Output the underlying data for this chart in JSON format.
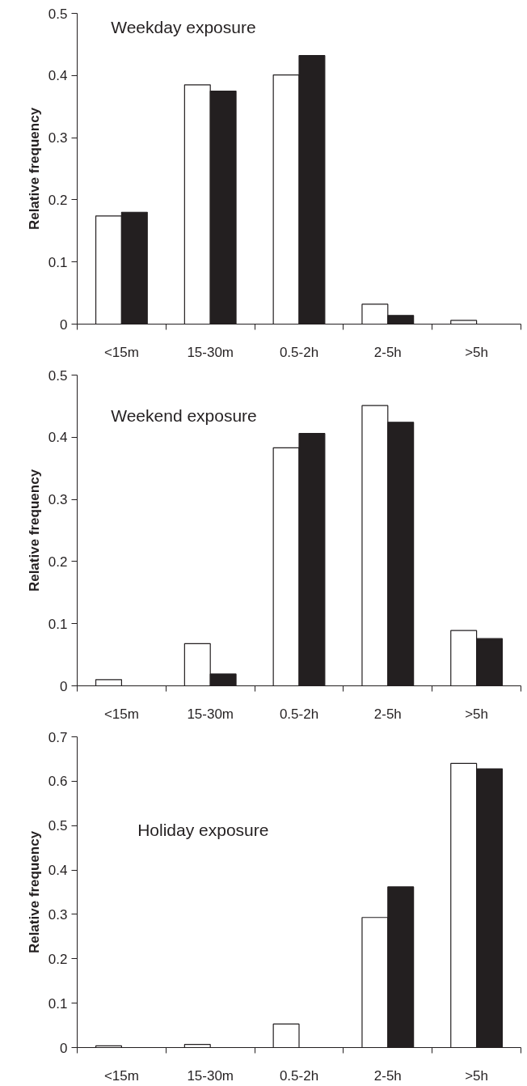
{
  "chart_data": [
    {
      "type": "bar",
      "title": "Weekday exposure",
      "ylabel": "Relative frequency",
      "categories": [
        "<15m",
        "15-30m",
        "0.5-2h",
        "2-5h",
        ">5h"
      ],
      "series": [
        {
          "color": "#ffffff",
          "values": [
            0.174,
            0.385,
            0.401,
            0.032,
            0.006
          ]
        },
        {
          "color": "#231f20",
          "values": [
            0.18,
            0.375,
            0.432,
            0.014,
            0
          ]
        }
      ],
      "ylim": [
        0,
        0.5
      ],
      "yticks": [
        0,
        0.1,
        0.2,
        0.3,
        0.4,
        0.5
      ]
    },
    {
      "type": "bar",
      "title": "Weekend exposure",
      "ylabel": "Relative frequency",
      "categories": [
        "<15m",
        "15-30m",
        "0.5-2h",
        "2-5h",
        ">5h"
      ],
      "series": [
        {
          "color": "#ffffff",
          "values": [
            0.01,
            0.068,
            0.383,
            0.451,
            0.089
          ]
        },
        {
          "color": "#231f20",
          "values": [
            0,
            0.019,
            0.406,
            0.424,
            0.076
          ]
        }
      ],
      "ylim": [
        0,
        0.5
      ],
      "yticks": [
        0,
        0.1,
        0.2,
        0.3,
        0.4,
        0.5
      ]
    },
    {
      "type": "bar",
      "title": "Holiday exposure",
      "ylabel": "Relative frequency",
      "categories": [
        "<15m",
        "15-30m",
        "0.5-2h",
        "2-5h",
        ">5h"
      ],
      "series": [
        {
          "color": "#ffffff",
          "values": [
            0.004,
            0.007,
            0.053,
            0.293,
            0.64
          ]
        },
        {
          "color": "#231f20",
          "values": [
            0,
            0,
            0,
            0.362,
            0.628
          ]
        }
      ],
      "ylim": [
        0,
        0.7
      ],
      "yticks": [
        0,
        0.1,
        0.2,
        0.3,
        0.4,
        0.5,
        0.6,
        0.7
      ]
    }
  ]
}
